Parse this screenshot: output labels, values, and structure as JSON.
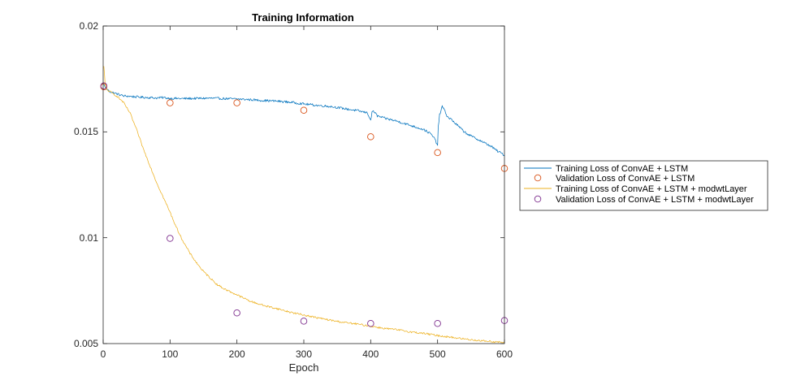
{
  "chart_data": {
    "type": "line",
    "title": "Training Information",
    "xlabel": "Epoch",
    "ylabel": "",
    "xlim": [
      0,
      600
    ],
    "ylim": [
      0.005,
      0.02
    ],
    "xticks": [
      0,
      100,
      200,
      300,
      400,
      500,
      600
    ],
    "xtick_labels": [
      "0",
      "100",
      "200",
      "300",
      "400",
      "500",
      "600"
    ],
    "yticks": [
      0.005,
      0.01,
      0.015,
      0.02
    ],
    "ytick_labels": [
      "0.005",
      "0.01",
      "0.015",
      "0.02"
    ],
    "legend_position": "right-outside",
    "series": [
      {
        "name": "Training Loss of ConvAE + LSTM",
        "kind": "line",
        "color": "#0072BD",
        "x": [
          1,
          3,
          6,
          10,
          15,
          20,
          30,
          40,
          50,
          60,
          70,
          80,
          90,
          100,
          120,
          140,
          160,
          180,
          200,
          220,
          240,
          260,
          280,
          300,
          320,
          340,
          360,
          380,
          395,
          398,
          400,
          402,
          404,
          410,
          420,
          440,
          460,
          470,
          480,
          490,
          495,
          500,
          501,
          503,
          505,
          507,
          509,
          512,
          515,
          520,
          530,
          540,
          550,
          560,
          570,
          580,
          590,
          595,
          600
        ],
        "y": [
          0.01725,
          0.0171,
          0.017,
          0.0169,
          0.01685,
          0.0168,
          0.0167,
          0.01668,
          0.01665,
          0.01663,
          0.01662,
          0.0166,
          0.01662,
          0.01658,
          0.01657,
          0.01658,
          0.01659,
          0.01657,
          0.01655,
          0.01652,
          0.01648,
          0.01645,
          0.0164,
          0.01632,
          0.01625,
          0.0162,
          0.0161,
          0.016,
          0.0159,
          0.0157,
          0.01555,
          0.0159,
          0.016,
          0.01575,
          0.01565,
          0.0155,
          0.0153,
          0.0152,
          0.0151,
          0.0149,
          0.0147,
          0.01438,
          0.0152,
          0.0158,
          0.016,
          0.0162,
          0.0161,
          0.0159,
          0.0157,
          0.0156,
          0.0153,
          0.015,
          0.0148,
          0.01465,
          0.01448,
          0.01432,
          0.01408,
          0.014,
          0.0139
        ]
      },
      {
        "name": "Validation Loss of ConvAE + LSTM",
        "kind": "markers",
        "color": "#D95319",
        "x": [
          1,
          100,
          200,
          300,
          400,
          500,
          600
        ],
        "y": [
          0.01713,
          0.01637,
          0.01637,
          0.01602,
          0.01477,
          0.01402,
          0.01327
        ]
      },
      {
        "name": "Training Loss of ConvAE + LSTM + modwtLayer",
        "kind": "line",
        "color": "#EDB120",
        "x": [
          1,
          2,
          3,
          5,
          10,
          20,
          30,
          40,
          50,
          60,
          70,
          80,
          90,
          100,
          110,
          120,
          130,
          140,
          150,
          160,
          170,
          180,
          190,
          200,
          220,
          240,
          260,
          280,
          300,
          320,
          340,
          360,
          380,
          400,
          420,
          440,
          460,
          480,
          500,
          520,
          540,
          560,
          580,
          600
        ],
        "y": [
          0.0181,
          0.0177,
          0.0172,
          0.017,
          0.0169,
          0.0167,
          0.0164,
          0.0159,
          0.0151,
          0.0142,
          0.0134,
          0.0126,
          0.0119,
          0.0112,
          0.01045,
          0.0098,
          0.00925,
          0.0088,
          0.0084,
          0.0081,
          0.0078,
          0.0076,
          0.00745,
          0.0073,
          0.007,
          0.0068,
          0.00665,
          0.00648,
          0.00635,
          0.00622,
          0.0061,
          0.006,
          0.00592,
          0.00582,
          0.00572,
          0.00565,
          0.00555,
          0.00548,
          0.00538,
          0.0053,
          0.00522,
          0.00515,
          0.0051,
          0.00505
        ]
      },
      {
        "name": "Validation Loss of ConvAE + LSTM + modwtLayer",
        "kind": "markers",
        "color": "#7E2F8E",
        "x": [
          1,
          100,
          200,
          300,
          400,
          500,
          600
        ],
        "y": [
          0.01717,
          0.00997,
          0.00645,
          0.00606,
          0.00595,
          0.00595,
          0.00609
        ]
      }
    ]
  }
}
